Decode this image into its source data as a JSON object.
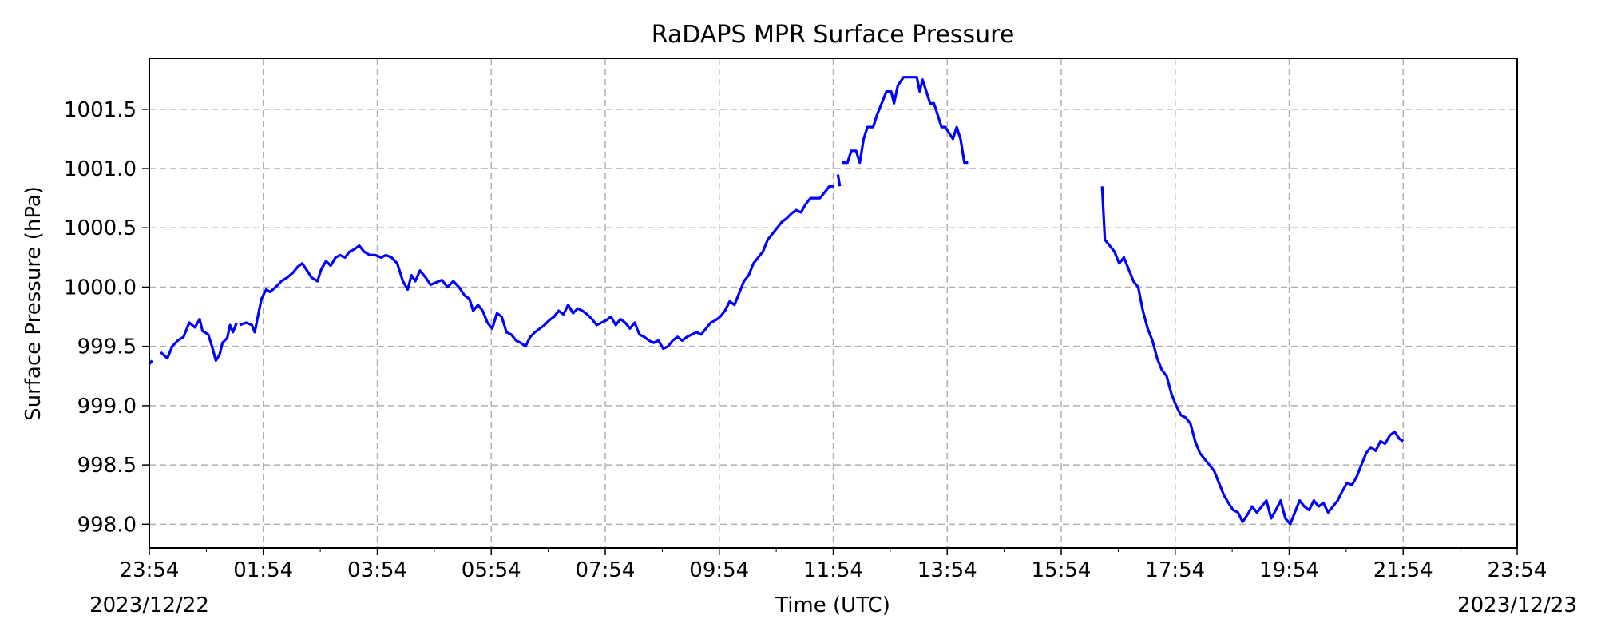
{
  "chart_data": {
    "type": "line",
    "title": "RaDAPS MPR Surface Pressure",
    "xlabel": "Time (UTC)",
    "ylabel": "Surface Pressure (hPa)",
    "xlim": [
      "2023/12/22 23:54",
      "2023/12/23 23:54"
    ],
    "ylim": [
      997.8,
      1001.93
    ],
    "grid": true,
    "x_ticks": [
      "23:54",
      "01:54",
      "03:54",
      "05:54",
      "07:54",
      "09:54",
      "11:54",
      "13:54",
      "15:54",
      "17:54",
      "19:54",
      "21:54",
      "23:54"
    ],
    "x_start_date": "2023/12/22",
    "x_end_date": "2023/12/23",
    "y_ticks": [
      "998.0",
      "998.5",
      "999.0",
      "999.5",
      "1000.0",
      "1000.5",
      "1001.0",
      "1001.5"
    ],
    "line_color": "#0000ff",
    "series": [
      {
        "segments": [
          [
            [
              "23:54",
              999.35
            ],
            [
              "23:57",
              999.38
            ]
          ],
          [
            [
              "00:06",
              999.45
            ],
            [
              "00:13",
              999.4
            ],
            [
              "00:18",
              999.5
            ],
            [
              "00:24",
              999.55
            ],
            [
              "00:30",
              999.58
            ],
            [
              "00:36",
              999.7
            ],
            [
              "00:42",
              999.66
            ],
            [
              "00:47",
              999.73
            ],
            [
              "00:50",
              999.63
            ],
            [
              "00:56",
              999.6
            ],
            [
              "01:00",
              999.5
            ],
            [
              "01:04",
              999.38
            ],
            [
              "01:08",
              999.43
            ],
            [
              "01:11",
              999.53
            ],
            [
              "01:16",
              999.57
            ],
            [
              "01:19",
              999.68
            ],
            [
              "01:22",
              999.62
            ],
            [
              "01:26",
              999.7
            ]
          ],
          [
            [
              "01:29",
              999.68
            ],
            [
              "01:36",
              999.7
            ],
            [
              "01:42",
              999.68
            ],
            [
              "01:45",
              999.62
            ],
            [
              "01:49",
              999.78
            ],
            [
              "01:52",
              999.9
            ],
            [
              "01:57",
              999.98
            ],
            [
              "02:01",
              999.96
            ],
            [
              "02:07",
              1000.0
            ],
            [
              "02:13",
              1000.05
            ],
            [
              "02:19",
              1000.08
            ],
            [
              "02:25",
              1000.12
            ],
            [
              "02:30",
              1000.17
            ],
            [
              "02:35",
              1000.2
            ],
            [
              "02:40",
              1000.14
            ],
            [
              "02:45",
              1000.08
            ],
            [
              "02:51",
              1000.05
            ],
            [
              "02:55",
              1000.15
            ],
            [
              "03:00",
              1000.22
            ],
            [
              "03:05",
              1000.18
            ],
            [
              "03:10",
              1000.25
            ],
            [
              "03:15",
              1000.27
            ],
            [
              "03:20",
              1000.25
            ],
            [
              "03:25",
              1000.3
            ],
            [
              "03:30",
              1000.32
            ],
            [
              "03:35",
              1000.35
            ],
            [
              "03:40",
              1000.3
            ],
            [
              "03:46",
              1000.27
            ],
            [
              "03:52",
              1000.27
            ],
            [
              "03:58",
              1000.25
            ],
            [
              "04:03",
              1000.27
            ],
            [
              "04:09",
              1000.25
            ],
            [
              "04:15",
              1000.2
            ],
            [
              "04:21",
              1000.05
            ],
            [
              "04:26",
              999.98
            ],
            [
              "04:30",
              1000.1
            ],
            [
              "04:34",
              1000.05
            ],
            [
              "04:39",
              1000.14
            ],
            [
              "04:45",
              1000.08
            ],
            [
              "04:50",
              1000.02
            ],
            [
              "04:56",
              1000.04
            ],
            [
              "05:02",
              1000.06
            ],
            [
              "05:08",
              1000.0
            ],
            [
              "05:14",
              1000.05
            ],
            [
              "05:20",
              1000.0
            ],
            [
              "05:26",
              999.93
            ],
            [
              "05:31",
              999.9
            ],
            [
              "05:35",
              999.8
            ],
            [
              "05:40",
              999.85
            ],
            [
              "05:45",
              999.8
            ],
            [
              "05:50",
              999.7
            ],
            [
              "05:55",
              999.65
            ],
            [
              "06:00",
              999.78
            ],
            [
              "06:05",
              999.75
            ],
            [
              "06:10",
              999.62
            ],
            [
              "06:15",
              999.6
            ],
            [
              "06:20",
              999.55
            ],
            [
              "06:25",
              999.53
            ],
            [
              "06:30",
              999.5
            ],
            [
              "06:35",
              999.58
            ],
            [
              "06:40",
              999.62
            ],
            [
              "06:45",
              999.65
            ],
            [
              "06:50",
              999.68
            ],
            [
              "06:55",
              999.72
            ],
            [
              "07:00",
              999.75
            ],
            [
              "07:05",
              999.8
            ],
            [
              "07:10",
              999.77
            ],
            [
              "07:15",
              999.85
            ],
            [
              "07:20",
              999.78
            ],
            [
              "07:25",
              999.82
            ],
            [
              "07:30",
              999.8
            ],
            [
              "07:35",
              999.77
            ],
            [
              "07:40",
              999.73
            ],
            [
              "07:45",
              999.68
            ],
            [
              "07:50",
              999.7
            ],
            [
              "07:55",
              999.72
            ],
            [
              "08:00",
              999.75
            ],
            [
              "08:05",
              999.68
            ],
            [
              "08:10",
              999.73
            ],
            [
              "08:15",
              999.7
            ],
            [
              "08:20",
              999.65
            ],
            [
              "08:25",
              999.7
            ],
            [
              "08:30",
              999.6
            ],
            [
              "08:35",
              999.58
            ],
            [
              "08:40",
              999.55
            ],
            [
              "08:45",
              999.53
            ],
            [
              "08:50",
              999.55
            ],
            [
              "08:55",
              999.48
            ],
            [
              "09:00",
              999.5
            ],
            [
              "09:05",
              999.55
            ],
            [
              "09:10",
              999.58
            ],
            [
              "09:15",
              999.55
            ],
            [
              "09:20",
              999.58
            ],
            [
              "09:25",
              999.6
            ],
            [
              "09:30",
              999.62
            ],
            [
              "09:35",
              999.6
            ],
            [
              "09:40",
              999.65
            ],
            [
              "09:45",
              999.7
            ],
            [
              "09:50",
              999.72
            ],
            [
              "09:55",
              999.75
            ],
            [
              "10:00",
              999.8
            ],
            [
              "10:05",
              999.88
            ],
            [
              "10:10",
              999.85
            ],
            [
              "10:15",
              999.95
            ],
            [
              "10:20",
              1000.05
            ],
            [
              "10:25",
              1000.1
            ],
            [
              "10:30",
              1000.2
            ],
            [
              "10:35",
              1000.25
            ],
            [
              "10:40",
              1000.3
            ],
            [
              "10:45",
              1000.4
            ],
            [
              "10:50",
              1000.45
            ],
            [
              "10:55",
              1000.5
            ],
            [
              "11:00",
              1000.55
            ],
            [
              "11:05",
              1000.58
            ],
            [
              "11:10",
              1000.62
            ],
            [
              "11:15",
              1000.65
            ],
            [
              "11:20",
              1000.63
            ],
            [
              "11:25",
              1000.7
            ],
            [
              "11:30",
              1000.75
            ],
            [
              "11:35",
              1000.75
            ],
            [
              "11:40",
              1000.75
            ],
            [
              "11:45",
              1000.8
            ],
            [
              "11:50",
              1000.85
            ],
            [
              "11:55",
              1000.85
            ]
          ],
          [
            [
              "11:59",
              1000.95
            ],
            [
              "12:01",
              1000.85
            ]
          ],
          [
            [
              "12:03",
              1001.05
            ],
            [
              "12:09",
              1001.05
            ],
            [
              "12:13",
              1001.15
            ],
            [
              "12:18",
              1001.15
            ],
            [
              "12:22",
              1001.05
            ],
            [
              "12:26",
              1001.25
            ],
            [
              "12:30",
              1001.35
            ],
            [
              "12:36",
              1001.35
            ],
            [
              "12:40",
              1001.45
            ],
            [
              "12:45",
              1001.55
            ],
            [
              "12:50",
              1001.65
            ],
            [
              "12:55",
              1001.65
            ],
            [
              "12:58",
              1001.55
            ],
            [
              "13:02",
              1001.7
            ],
            [
              "13:08",
              1001.77
            ],
            [
              "13:15",
              1001.77
            ],
            [
              "13:22",
              1001.77
            ],
            [
              "13:25",
              1001.65
            ],
            [
              "13:28",
              1001.75
            ],
            [
              "13:32",
              1001.65
            ],
            [
              "13:36",
              1001.55
            ],
            [
              "13:40",
              1001.55
            ],
            [
              "13:44",
              1001.45
            ],
            [
              "13:48",
              1001.35
            ],
            [
              "13:52",
              1001.35
            ],
            [
              "13:56",
              1001.3
            ],
            [
              "14:00",
              1001.25
            ],
            [
              "14:04",
              1001.35
            ],
            [
              "14:08",
              1001.25
            ],
            [
              "14:12",
              1001.05
            ],
            [
              "14:16",
              1001.05
            ]
          ],
          [
            [
              "16:37",
              1000.85
            ],
            [
              "16:40",
              1000.4
            ],
            [
              "16:45",
              1000.35
            ],
            [
              "16:50",
              1000.3
            ],
            [
              "16:55",
              1000.2
            ],
            [
              "17:00",
              1000.25
            ],
            [
              "17:05",
              1000.15
            ],
            [
              "17:10",
              1000.05
            ],
            [
              "17:15",
              1000.0
            ],
            [
              "17:20",
              999.8
            ],
            [
              "17:25",
              999.65
            ],
            [
              "17:30",
              999.55
            ],
            [
              "17:35",
              999.4
            ],
            [
              "17:40",
              999.3
            ],
            [
              "17:45",
              999.25
            ],
            [
              "17:50",
              999.1
            ],
            [
              "17:55",
              999.0
            ],
            [
              "18:00",
              998.92
            ],
            [
              "18:05",
              998.9
            ],
            [
              "18:10",
              998.85
            ],
            [
              "18:15",
              998.7
            ],
            [
              "18:20",
              998.6
            ],
            [
              "18:25",
              998.55
            ],
            [
              "18:30",
              998.5
            ],
            [
              "18:35",
              998.45
            ],
            [
              "18:40",
              998.35
            ],
            [
              "18:45",
              998.25
            ],
            [
              "18:50",
              998.18
            ],
            [
              "18:55",
              998.12
            ],
            [
              "19:00",
              998.1
            ],
            [
              "19:05",
              998.02
            ],
            [
              "19:10",
              998.08
            ],
            [
              "19:15",
              998.15
            ],
            [
              "19:20",
              998.1
            ],
            [
              "19:25",
              998.15
            ],
            [
              "19:30",
              998.2
            ],
            [
              "19:35",
              998.05
            ],
            [
              "19:40",
              998.12
            ],
            [
              "19:45",
              998.2
            ],
            [
              "19:50",
              998.05
            ],
            [
              "19:55",
              998.0
            ],
            [
              "20:00",
              998.1
            ],
            [
              "20:05",
              998.2
            ],
            [
              "20:10",
              998.15
            ],
            [
              "20:15",
              998.12
            ],
            [
              "20:20",
              998.2
            ],
            [
              "20:25",
              998.15
            ],
            [
              "20:30",
              998.18
            ],
            [
              "20:35",
              998.1
            ],
            [
              "20:40",
              998.15
            ],
            [
              "20:45",
              998.2
            ],
            [
              "20:50",
              998.28
            ],
            [
              "20:55",
              998.35
            ],
            [
              "21:00",
              998.33
            ],
            [
              "21:05",
              998.4
            ],
            [
              "21:10",
              998.5
            ],
            [
              "21:15",
              998.6
            ],
            [
              "21:20",
              998.65
            ],
            [
              "21:25",
              998.62
            ],
            [
              "21:30",
              998.7
            ],
            [
              "21:35",
              998.68
            ],
            [
              "21:40",
              998.75
            ],
            [
              "21:45",
              998.78
            ],
            [
              "21:50",
              998.72
            ],
            [
              "21:54",
              998.7
            ]
          ]
        ]
      }
    ]
  }
}
